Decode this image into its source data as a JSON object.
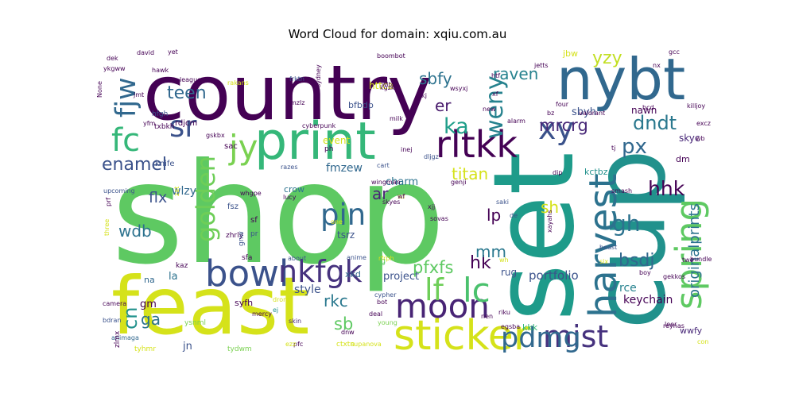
{
  "title": "Word Cloud for domain: xqiu.com.au",
  "chart_data": {
    "type": "wordcloud",
    "title": "Word Cloud for domain: xqiu.com.au",
    "words": [
      {
        "text": "shop",
        "color": "#5ec962"
      },
      {
        "text": "country",
        "color": "#440154"
      },
      {
        "text": "cup",
        "color": "#21918c"
      },
      {
        "text": "set",
        "color": "#1e9b8a"
      },
      {
        "text": "feast",
        "color": "#d5e21a"
      },
      {
        "text": "print",
        "color": "#35b779"
      },
      {
        "text": "nybt",
        "color": "#31688e"
      },
      {
        "text": "sticker",
        "color": "#d5e21a"
      },
      {
        "text": "moon",
        "color": "#482475"
      },
      {
        "text": "rltkk",
        "color": "#440154"
      },
      {
        "text": "harvest",
        "color": "#2c728e"
      },
      {
        "text": "spring",
        "color": "#5ec962"
      },
      {
        "text": "bowl",
        "color": "#3b528b"
      },
      {
        "text": "nkfgk",
        "color": "#46327e"
      },
      {
        "text": "xy",
        "color": "#3b528b"
      },
      {
        "text": "sr",
        "color": "#3b528b"
      },
      {
        "text": "fc",
        "color": "#35b779"
      },
      {
        "text": "jy",
        "color": "#7ad151"
      },
      {
        "text": "lc",
        "color": "#4ac16d"
      },
      {
        "text": "mist",
        "color": "#46327e"
      },
      {
        "text": "pdmg",
        "color": "#31688e"
      },
      {
        "text": "fjw",
        "color": "#31688e"
      },
      {
        "text": "weny",
        "color": "#26828e"
      },
      {
        "text": "lf",
        "color": "#6ece58"
      },
      {
        "text": "golden",
        "color": "#6ece58"
      },
      {
        "text": "pin",
        "color": "#31688e"
      },
      {
        "text": "ka",
        "color": "#1f9e89"
      },
      {
        "text": "hhk",
        "color": "#440154"
      },
      {
        "text": "dndt",
        "color": "#2a788e"
      },
      {
        "text": "gh",
        "color": "#2c728e"
      },
      {
        "text": "px",
        "color": "#31688e"
      },
      {
        "text": "yzy",
        "color": "#c2df23"
      },
      {
        "text": "mrcrg",
        "color": "#482878"
      },
      {
        "text": "teen",
        "color": "#31688e"
      },
      {
        "text": "enamel",
        "color": "#3b528b"
      },
      {
        "text": "raven",
        "color": "#26828e"
      },
      {
        "text": "sbfy",
        "color": "#2c728e"
      },
      {
        "text": "er",
        "color": "#481a6c"
      },
      {
        "text": "pfxfs",
        "color": "#5ec962"
      },
      {
        "text": "cn",
        "color": "#21918c"
      },
      {
        "text": "titan",
        "color": "#d5e21a"
      },
      {
        "text": "sh",
        "color": "#d5e21a"
      },
      {
        "text": "lp",
        "color": "#440154"
      },
      {
        "text": "bsdj",
        "color": "#31688e"
      },
      {
        "text": "hk",
        "color": "#440154"
      },
      {
        "text": "mm",
        "color": "#2a788e"
      },
      {
        "text": "rkc",
        "color": "#2a788e"
      },
      {
        "text": "sb",
        "color": "#5ec962"
      },
      {
        "text": "ga",
        "color": "#2c728e"
      },
      {
        "text": "wdb",
        "color": "#2c728e"
      },
      {
        "text": "flx",
        "color": "#3b528b"
      },
      {
        "text": "ar",
        "color": "#482475"
      },
      {
        "text": "originalprints",
        "color": "#2c728e"
      },
      {
        "text": "portfolio",
        "color": "#3b528b"
      },
      {
        "text": "rce",
        "color": "#26828e"
      },
      {
        "text": "keychain",
        "color": "#440154"
      },
      {
        "text": "fmzew",
        "color": "#31688e"
      },
      {
        "text": "wlzy",
        "color": "#31688e"
      },
      {
        "text": "event",
        "color": "#d5e21a"
      },
      {
        "text": "charm",
        "color": "#2c728e"
      },
      {
        "text": "sbyh",
        "color": "#3b528b"
      },
      {
        "text": "nawn",
        "color": "#440154"
      },
      {
        "text": "skyc",
        "color": "#482878"
      },
      {
        "text": "dm",
        "color": "#440154"
      },
      {
        "text": "jn",
        "color": "#3b528b"
      },
      {
        "text": "style",
        "color": "#3b528b"
      },
      {
        "text": "project",
        "color": "#3b528b"
      },
      {
        "text": "rug",
        "color": "#3b528b"
      },
      {
        "text": "la",
        "color": "#2c728e"
      },
      {
        "text": "gm",
        "color": "#440154"
      },
      {
        "text": "kkk",
        "color": "#35b779"
      },
      {
        "text": "wwfy",
        "color": "#482878"
      },
      {
        "text": "tsrz",
        "color": "#3b528b"
      },
      {
        "text": "kctbz",
        "color": "#21918c"
      },
      {
        "text": "jbw",
        "color": "#d5e21a"
      },
      {
        "text": "httca",
        "color": "#d5e21a"
      },
      {
        "text": "bfbdp",
        "color": "#3b528b"
      },
      {
        "text": "htg",
        "color": "#5ec962"
      },
      {
        "text": "xkd",
        "color": "#31688e"
      },
      {
        "text": "syfh",
        "color": "#440154"
      },
      {
        "text": "na",
        "color": "#31688e"
      },
      {
        "text": "sac",
        "color": "#440154"
      },
      {
        "text": "rdjcm",
        "color": "#440154"
      },
      {
        "text": "hfgh",
        "color": "#3b528b"
      },
      {
        "text": "txbkh",
        "color": "#440154"
      },
      {
        "text": "knife",
        "color": "#3b528b"
      },
      {
        "text": "crow",
        "color": "#2c728e"
      },
      {
        "text": "fsz",
        "color": "#3b528b"
      },
      {
        "text": "sf",
        "color": "#440154"
      },
      {
        "text": "zhrly",
        "color": "#440154"
      },
      {
        "text": "pr",
        "color": "#3b528b"
      },
      {
        "text": "ph",
        "color": "#440154"
      },
      {
        "text": "kaz",
        "color": "#440154"
      },
      {
        "text": "sfa",
        "color": "#440154"
      },
      {
        "text": "gnw",
        "color": "#3b528b"
      },
      {
        "text": "ysnml",
        "color": "#7ad151"
      },
      {
        "text": "tydwm",
        "color": "#7ad151"
      },
      {
        "text": "tyhmr",
        "color": "#d5e21a"
      },
      {
        "text": "animaga",
        "color": "#31688e"
      },
      {
        "text": "bdran",
        "color": "#3b528b"
      },
      {
        "text": "camera",
        "color": "#440154"
      },
      {
        "text": "zlmx",
        "color": "#440154"
      },
      {
        "text": "drone",
        "color": "#d5e21a"
      },
      {
        "text": "ej",
        "color": "#21918c"
      },
      {
        "text": "skin",
        "color": "#482878"
      },
      {
        "text": "lucy",
        "color": "#440154"
      },
      {
        "text": "mercy",
        "color": "#440154"
      },
      {
        "text": "pfc",
        "color": "#440154"
      },
      {
        "text": "ezz",
        "color": "#d5e21a"
      },
      {
        "text": "ctxtn",
        "color": "#d5e21a"
      },
      {
        "text": "supanova",
        "color": "#d5e21a"
      },
      {
        "text": "dnw",
        "color": "#440154"
      },
      {
        "text": "young",
        "color": "#7ad151"
      },
      {
        "text": "deal",
        "color": "#440154"
      },
      {
        "text": "bot",
        "color": "#440154"
      },
      {
        "text": "cypher",
        "color": "#3b528b"
      },
      {
        "text": "rfrph",
        "color": "#d5e21a"
      },
      {
        "text": "anime",
        "color": "#3b528b"
      },
      {
        "text": "about",
        "color": "#3b528b"
      },
      {
        "text": "sovas",
        "color": "#440154"
      },
      {
        "text": "one",
        "color": "#d5e21a"
      },
      {
        "text": "xjj",
        "color": "#440154"
      },
      {
        "text": "skyes",
        "color": "#440154"
      },
      {
        "text": "whgpe",
        "color": "#440154"
      },
      {
        "text": "prf",
        "color": "#440154"
      },
      {
        "text": "three",
        "color": "#d5e21a"
      },
      {
        "text": "upcoming",
        "color": "#3b528b"
      },
      {
        "text": "razes",
        "color": "#3b528b"
      },
      {
        "text": "cart",
        "color": "#3b528b"
      },
      {
        "text": "wingman",
        "color": "#440154"
      },
      {
        "text": "genji",
        "color": "#440154"
      },
      {
        "text": "dljgz",
        "color": "#3b528b"
      },
      {
        "text": "inej",
        "color": "#440154"
      },
      {
        "text": "saki",
        "color": "#3b528b"
      },
      {
        "text": "de",
        "color": "#3b528b"
      },
      {
        "text": "xayahs",
        "color": "#440154"
      },
      {
        "text": "smash",
        "color": "#440154"
      },
      {
        "text": "beast",
        "color": "#3b528b"
      },
      {
        "text": "six",
        "color": "#d5e21a"
      },
      {
        "text": "boy",
        "color": "#440154"
      },
      {
        "text": "two",
        "color": "#440154"
      },
      {
        "text": "bundle",
        "color": "#440154"
      },
      {
        "text": "gekkos",
        "color": "#440154"
      },
      {
        "text": "egsba",
        "color": "#440154"
      },
      {
        "text": "nen",
        "color": "#440154"
      },
      {
        "text": "riku",
        "color": "#440154"
      },
      {
        "text": "reynas",
        "color": "#440154"
      },
      {
        "text": "con",
        "color": "#d5e21a"
      },
      {
        "text": "leer",
        "color": "#440154"
      },
      {
        "text": "wh",
        "color": "#d5e21a"
      },
      {
        "text": "dip",
        "color": "#440154"
      },
      {
        "text": "tj",
        "color": "#440154"
      },
      {
        "text": "excz",
        "color": "#440154"
      },
      {
        "text": "wb",
        "color": "#440154"
      },
      {
        "text": "killjoy",
        "color": "#440154"
      },
      {
        "text": "bcd",
        "color": "#440154"
      },
      {
        "text": "nx",
        "color": "#440154"
      },
      {
        "text": "gcc",
        "color": "#440154"
      },
      {
        "text": "bz",
        "color": "#440154"
      },
      {
        "text": "valorant",
        "color": "#440154"
      },
      {
        "text": "four",
        "color": "#440154"
      },
      {
        "text": "jetts",
        "color": "#440154"
      },
      {
        "text": "htf",
        "color": "#440154"
      },
      {
        "text": "xf",
        "color": "#440154"
      },
      {
        "text": "new",
        "color": "#440154"
      },
      {
        "text": "alarm",
        "color": "#440154"
      },
      {
        "text": "kgzks",
        "color": "#440154"
      },
      {
        "text": "skj",
        "color": "#440154"
      },
      {
        "text": "witch",
        "color": "#440154"
      },
      {
        "text": "wsyxj",
        "color": "#440154"
      },
      {
        "text": "milk",
        "color": "#440154"
      },
      {
        "text": "boombot",
        "color": "#440154"
      },
      {
        "text": "yet",
        "color": "#440154"
      },
      {
        "text": "frktn",
        "color": "#3b528b"
      },
      {
        "text": "sydney",
        "color": "#440154"
      },
      {
        "text": "cyberpunk",
        "color": "#440154"
      },
      {
        "text": "gskbx",
        "color": "#440154"
      },
      {
        "text": "rakans",
        "color": "#d5e21a"
      },
      {
        "text": "league",
        "color": "#440154"
      },
      {
        "text": "david",
        "color": "#440154"
      },
      {
        "text": "dek",
        "color": "#440154"
      },
      {
        "text": "ykgww",
        "color": "#440154"
      },
      {
        "text": "jmt",
        "color": "#440154"
      },
      {
        "text": "None",
        "color": "#440154"
      },
      {
        "text": "yfm",
        "color": "#440154"
      },
      {
        "text": "mzlz",
        "color": "#440154"
      },
      {
        "text": "hawk",
        "color": "#440154"
      },
      {
        "text": "zat",
        "color": "#d5e21a"
      },
      {
        "text": "sd",
        "color": "#d5e21a"
      },
      {
        "text": "wf",
        "color": "#440154"
      }
    ]
  }
}
